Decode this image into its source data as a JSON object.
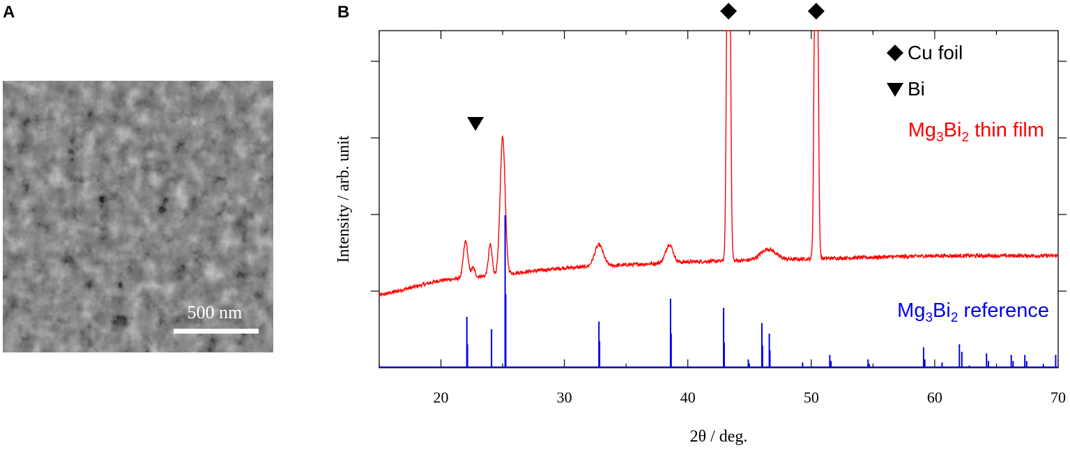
{
  "panels": {
    "a_label": "A",
    "b_label": "B"
  },
  "sem": {
    "scale_bar_label": "500 nm"
  },
  "chart_data": {
    "type": "line",
    "title": "",
    "xlabel": "2θ / deg.",
    "ylabel": "Intensity / arb. unit",
    "xlim": [
      15,
      70
    ],
    "x_ticks": [
      "20",
      "30",
      "40",
      "50",
      "60",
      "70"
    ],
    "y_ticks_labeled": false,
    "grid": false,
    "legend": [
      {
        "marker": "diamond",
        "label": "Cu foil"
      },
      {
        "marker": "triangle-down",
        "label": "Bi"
      }
    ],
    "markers": [
      {
        "type": "diamond",
        "x": 43.3
      },
      {
        "type": "diamond",
        "x": 50.4
      },
      {
        "type": "triangle-down",
        "x": 22.8
      }
    ],
    "series": [
      {
        "name": "Mg3Bi2 thin film",
        "label_parts": {
          "a": "Mg",
          "a_sub": "3",
          "b": "Bi",
          "b_sub": "2",
          "c": " thin film"
        },
        "color": "#ff0000",
        "baseline": [
          [
            15,
            0.24
          ],
          [
            20,
            0.29
          ],
          [
            25,
            0.31
          ],
          [
            30,
            0.33
          ],
          [
            35,
            0.34
          ],
          [
            40,
            0.35
          ],
          [
            45,
            0.355
          ],
          [
            50,
            0.36
          ],
          [
            55,
            0.365
          ],
          [
            60,
            0.37
          ],
          [
            65,
            0.37
          ],
          [
            70,
            0.37
          ]
        ],
        "peaks": [
          {
            "x": 22.0,
            "height": 0.12,
            "width": 0.18
          },
          {
            "x": 22.6,
            "height": 0.03,
            "width": 0.15
          },
          {
            "x": 24.0,
            "height": 0.1,
            "width": 0.15
          },
          {
            "x": 25.0,
            "height": 0.45,
            "width": 0.2
          },
          {
            "x": 32.8,
            "height": 0.07,
            "width": 0.35
          },
          {
            "x": 38.5,
            "height": 0.06,
            "width": 0.3
          },
          {
            "x": 43.3,
            "height": 2.0,
            "width": 0.12
          },
          {
            "x": 46.5,
            "height": 0.035,
            "width": 0.6
          },
          {
            "x": 50.4,
            "height": 2.0,
            "width": 0.12
          }
        ],
        "noise": 0.006
      },
      {
        "name": "Mg3Bi2 reference",
        "label_parts": {
          "a": "Mg",
          "a_sub": "3",
          "b": "Bi",
          "b_sub": "2",
          "c": " reference"
        },
        "color": "#0000ee",
        "sticks": [
          [
            22.1,
            0.33
          ],
          [
            22.15,
            0.15
          ],
          [
            24.1,
            0.25
          ],
          [
            25.2,
            1.0
          ],
          [
            25.25,
            0.48
          ],
          [
            32.8,
            0.3
          ],
          [
            32.85,
            0.17
          ],
          [
            38.6,
            0.45
          ],
          [
            38.65,
            0.22
          ],
          [
            42.9,
            0.39
          ],
          [
            42.95,
            0.16
          ],
          [
            44.9,
            0.05
          ],
          [
            46.0,
            0.29
          ],
          [
            46.05,
            0.14
          ],
          [
            46.6,
            0.22
          ],
          [
            46.65,
            0.11
          ],
          [
            49.3,
            0.03
          ],
          [
            51.5,
            0.08
          ],
          [
            51.6,
            0.04
          ],
          [
            54.6,
            0.05
          ],
          [
            54.7,
            0.02
          ],
          [
            59.1,
            0.13
          ],
          [
            59.2,
            0.05
          ],
          [
            60.6,
            0.03
          ],
          [
            62.0,
            0.15
          ],
          [
            62.2,
            0.1
          ],
          [
            62.8,
            0.01
          ],
          [
            64.2,
            0.09
          ],
          [
            64.35,
            0.04
          ],
          [
            66.2,
            0.08
          ],
          [
            66.35,
            0.04
          ],
          [
            67.3,
            0.08
          ],
          [
            67.45,
            0.04
          ],
          [
            68.8,
            0.02
          ],
          [
            69.8,
            0.08
          ]
        ]
      }
    ]
  }
}
